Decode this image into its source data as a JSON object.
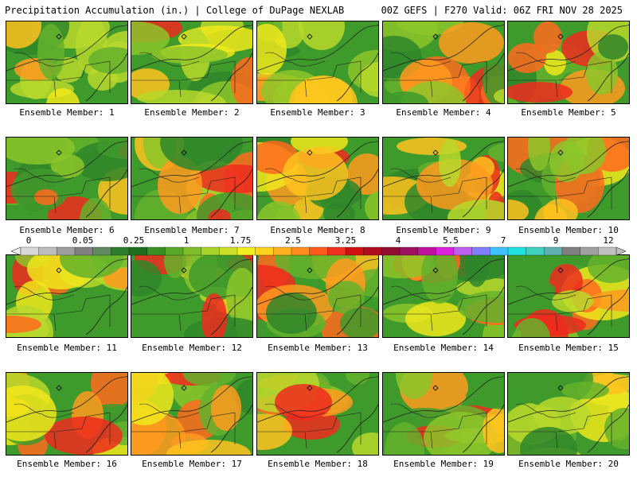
{
  "header": {
    "left": "Precipitation Accumulation (in.) | College of DuPage NEXLAB",
    "right": "00Z GEFS | F270 Valid: 06Z FRI NOV 28 2025"
  },
  "members": [
    "Ensemble Member: 1",
    "Ensemble Member: 2",
    "Ensemble Member: 3",
    "Ensemble Member: 4",
    "Ensemble Member: 5",
    "Ensemble Member: 6",
    "Ensemble Member: 7",
    "Ensemble Member: 8",
    "Ensemble Member: 9",
    "Ensemble Member: 10",
    "Ensemble Member: 11",
    "Ensemble Member: 12",
    "Ensemble Member: 13",
    "Ensemble Member: 14",
    "Ensemble Member: 15",
    "Ensemble Member: 16",
    "Ensemble Member: 17",
    "Ensemble Member: 18",
    "Ensemble Member: 19",
    "Ensemble Member: 20"
  ],
  "colorbar": {
    "ticks": [
      "0",
      "0.05",
      "0.25",
      "1",
      "1.75",
      "2.5",
      "3.25",
      "4",
      "5.5",
      "7",
      "9",
      "12"
    ],
    "colors": [
      "#d9d9d9",
      "#bdbdbd",
      "#9e9e9e",
      "#808080",
      "#5f8a5f",
      "#2f7d2f",
      "#1f6e1f",
      "#3a8f22",
      "#5aa82a",
      "#7fbf2a",
      "#a8d42a",
      "#cfe02a",
      "#f2ef1e",
      "#ffd21e",
      "#ffb21e",
      "#ff8c1e",
      "#ff5a1e",
      "#f03020",
      "#d01010",
      "#b00c20",
      "#900c30",
      "#a01060",
      "#c010a0",
      "#e020e0",
      "#c060f0",
      "#8080ff",
      "#40c0ff",
      "#20e0e0",
      "#40d0c0",
      "#60b0b0",
      "#808080",
      "#a0a0a0",
      "#c0c0c0"
    ]
  },
  "icons": {
    "marker": "diamond-marker-icon"
  }
}
